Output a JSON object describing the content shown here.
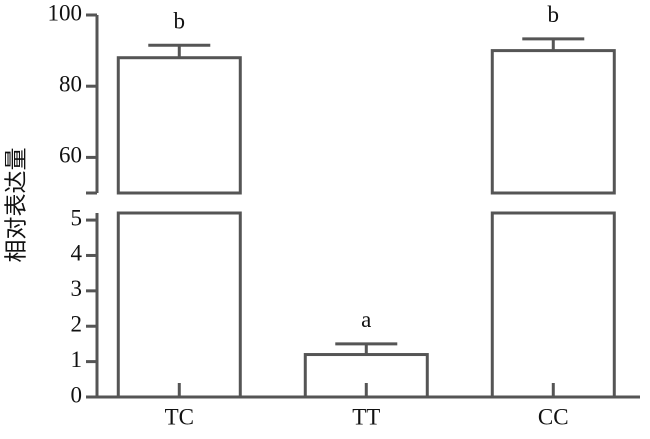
{
  "chart_data": {
    "type": "bar",
    "y_label": "相对表达量",
    "categories": [
      "TC",
      "TT",
      "CC"
    ],
    "values": [
      88,
      1.2,
      90
    ],
    "errors": [
      3.5,
      0.3,
      3.3
    ],
    "annotations": [
      "b",
      "a",
      "b"
    ],
    "color": "#dcdce0",
    "segments": [
      {
        "ylim": [
          50,
          100
        ],
        "yticks": [
          60,
          80,
          100
        ]
      },
      {
        "ylim": [
          0,
          5.2
        ],
        "yticks": [
          0,
          1,
          2,
          3,
          4,
          5
        ]
      }
    ]
  }
}
